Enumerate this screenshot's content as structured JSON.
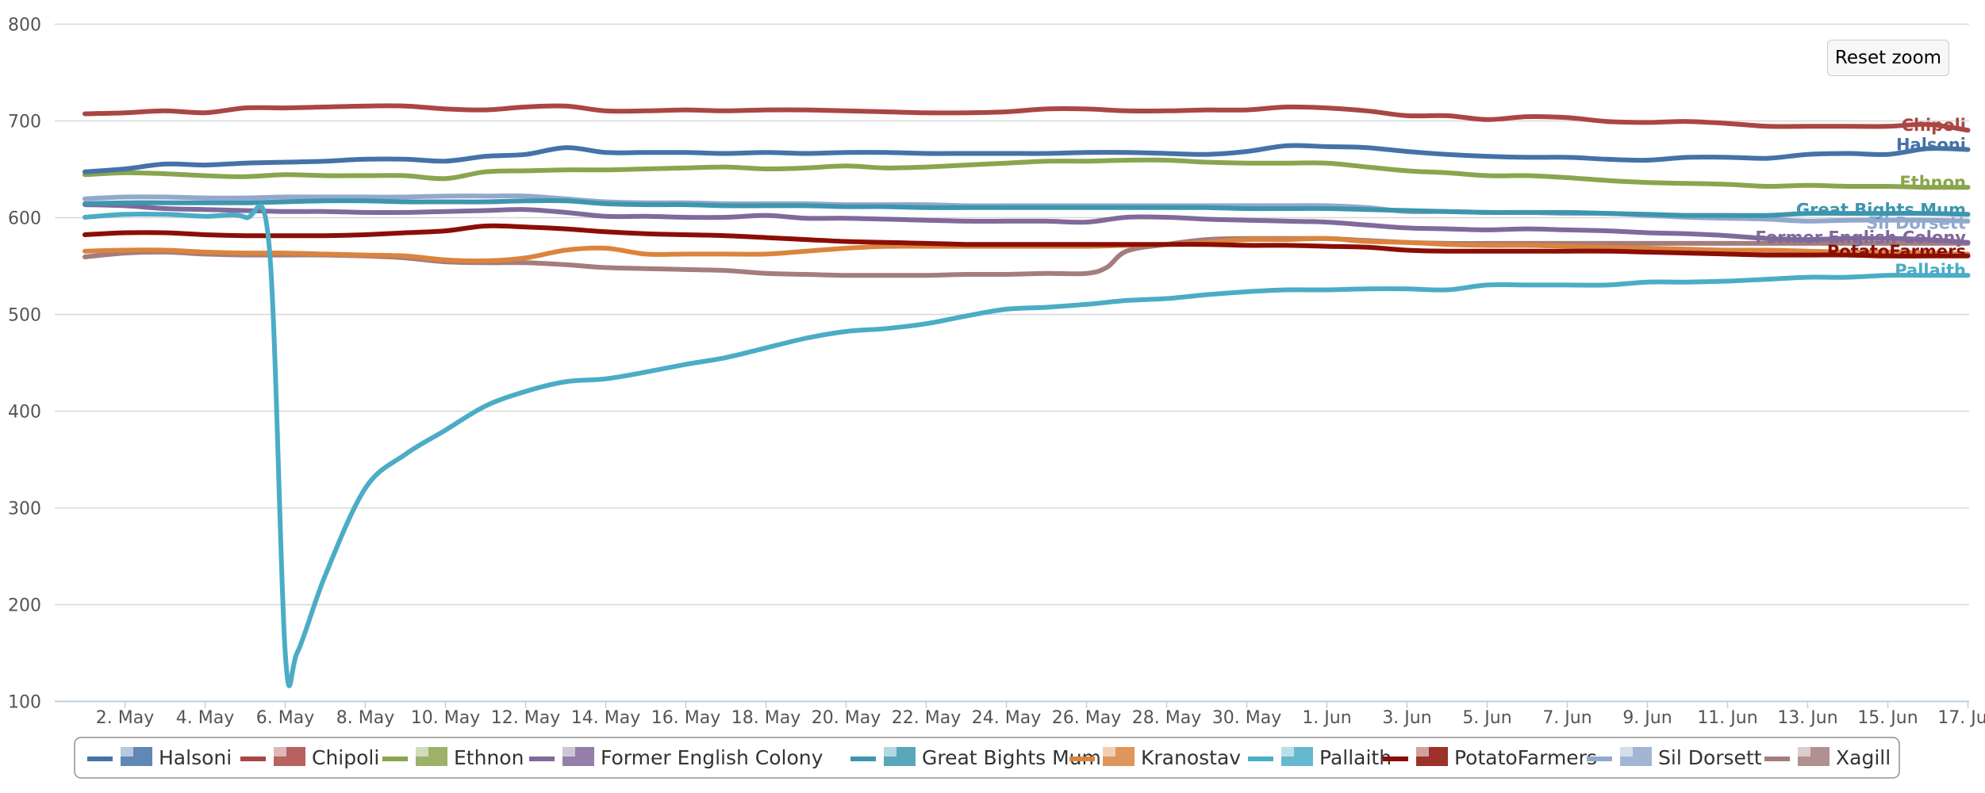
{
  "chart_data": {
    "type": "line",
    "title": "",
    "xlabel": "",
    "ylabel": "",
    "ylim": [
      100,
      800
    ],
    "y_ticks": [
      100,
      200,
      300,
      400,
      500,
      600,
      700,
      800
    ],
    "x_range_days": [
      0,
      48
    ],
    "x_ticks": [
      {
        "day": 1,
        "label": "2. May"
      },
      {
        "day": 3,
        "label": "4. May"
      },
      {
        "day": 5,
        "label": "6. May"
      },
      {
        "day": 7,
        "label": "8. May"
      },
      {
        "day": 9,
        "label": "10. May"
      },
      {
        "day": 11,
        "label": "12. May"
      },
      {
        "day": 13,
        "label": "14. May"
      },
      {
        "day": 15,
        "label": "16. May"
      },
      {
        "day": 17,
        "label": "18. May"
      },
      {
        "day": 19,
        "label": "20. May"
      },
      {
        "day": 21,
        "label": "22. May"
      },
      {
        "day": 23,
        "label": "24. May"
      },
      {
        "day": 25,
        "label": "26. May"
      },
      {
        "day": 27,
        "label": "28. May"
      },
      {
        "day": 29,
        "label": "30. May"
      },
      {
        "day": 31,
        "label": "1. Jun"
      },
      {
        "day": 33,
        "label": "3. Jun"
      },
      {
        "day": 35,
        "label": "5. Jun"
      },
      {
        "day": 37,
        "label": "7. Jun"
      },
      {
        "day": 39,
        "label": "9. Jun"
      },
      {
        "day": 41,
        "label": "11. Jun"
      },
      {
        "day": 43,
        "label": "13. Jun"
      },
      {
        "day": 45,
        "label": "15. Jun"
      },
      {
        "day": 47,
        "label": "17. Jun"
      }
    ],
    "grid": true,
    "legend_position": "bottom",
    "series": [
      {
        "name": "Halsoni",
        "color": "#4572A7",
        "icon": "flag-halsoni-icon",
        "x": [
          0,
          1,
          2,
          3,
          4,
          5,
          6,
          7,
          8,
          9,
          10,
          11,
          12,
          13,
          14,
          15,
          16,
          17,
          18,
          19,
          20,
          21,
          22,
          23,
          24,
          25,
          26,
          27,
          28,
          29,
          30,
          31,
          32,
          33,
          34,
          35,
          36,
          37,
          38,
          39,
          40,
          41,
          42,
          43,
          44,
          45,
          46,
          47
        ],
        "values": [
          647,
          650,
          655,
          654,
          656,
          657,
          658,
          660,
          660,
          658,
          663,
          665,
          672,
          667,
          667,
          667,
          666,
          667,
          666,
          667,
          667,
          666,
          666,
          666,
          666,
          667,
          667,
          666,
          665,
          668,
          674,
          673,
          672,
          668,
          665,
          663,
          662,
          662,
          660,
          659,
          662,
          662,
          661,
          665,
          666,
          665,
          671,
          670
        ]
      },
      {
        "name": "Chipoli",
        "color": "#AA4643",
        "icon": "flag-chipoli-icon",
        "x": [
          0,
          1,
          2,
          3,
          4,
          5,
          6,
          7,
          8,
          9,
          10,
          11,
          12,
          13,
          14,
          15,
          16,
          17,
          18,
          19,
          20,
          21,
          22,
          23,
          24,
          25,
          26,
          27,
          28,
          29,
          30,
          31,
          32,
          33,
          34,
          35,
          36,
          37,
          38,
          39,
          40,
          41,
          42,
          43,
          44,
          45,
          46,
          47
        ],
        "values": [
          707,
          708,
          710,
          708,
          713,
          713,
          714,
          715,
          715,
          712,
          711,
          714,
          715,
          710,
          710,
          711,
          710,
          711,
          711,
          710,
          709,
          708,
          708,
          709,
          712,
          712,
          710,
          710,
          711,
          711,
          714,
          713,
          710,
          705,
          705,
          701,
          704,
          703,
          699,
          698,
          699,
          697,
          694,
          694,
          694,
          694,
          696,
          690
        ]
      },
      {
        "name": "Ethnon",
        "color": "#89A54E",
        "icon": "flag-ethnon-icon",
        "x": [
          0,
          1,
          2,
          3,
          4,
          5,
          6,
          7,
          8,
          9,
          10,
          11,
          12,
          13,
          14,
          15,
          16,
          17,
          18,
          19,
          20,
          21,
          22,
          23,
          24,
          25,
          26,
          27,
          28,
          29,
          30,
          31,
          32,
          33,
          34,
          35,
          36,
          37,
          38,
          39,
          40,
          41,
          42,
          43,
          44,
          45,
          46,
          47
        ],
        "values": [
          644,
          646,
          645,
          643,
          642,
          644,
          643,
          643,
          643,
          640,
          647,
          648,
          649,
          649,
          650,
          651,
          652,
          650,
          651,
          653,
          651,
          652,
          654,
          656,
          658,
          658,
          659,
          659,
          657,
          656,
          656,
          656,
          652,
          648,
          646,
          643,
          643,
          641,
          638,
          636,
          635,
          634,
          632,
          633,
          632,
          632,
          631,
          631
        ]
      },
      {
        "name": "Former English Colony",
        "color": "#80699B",
        "icon": "flag-former-english-colony-icon",
        "x": [
          0,
          1,
          2,
          3,
          4,
          5,
          6,
          7,
          8,
          9,
          10,
          11,
          12,
          13,
          14,
          15,
          16,
          17,
          18,
          19,
          20,
          21,
          22,
          23,
          24,
          25,
          26,
          27,
          28,
          29,
          30,
          31,
          32,
          33,
          34,
          35,
          36,
          37,
          38,
          39,
          40,
          41,
          42,
          43,
          44,
          45,
          46,
          47
        ],
        "values": [
          613,
          612,
          609,
          608,
          607,
          606,
          606,
          605,
          605,
          606,
          607,
          608,
          605,
          601,
          601,
          600,
          600,
          602,
          599,
          599,
          598,
          597,
          596,
          596,
          596,
          595,
          600,
          600,
          598,
          597,
          596,
          595,
          592,
          589,
          588,
          587,
          588,
          587,
          586,
          584,
          583,
          581,
          578,
          577,
          578,
          578,
          577,
          574
        ]
      },
      {
        "name": "Great Bights Mum",
        "color": "#3D96AE",
        "icon": "flag-great-bights-mum-icon",
        "x": [
          0,
          1,
          2,
          3,
          4,
          5,
          6,
          7,
          8,
          9,
          10,
          11,
          12,
          13,
          14,
          15,
          16,
          17,
          18,
          19,
          20,
          21,
          22,
          23,
          24,
          25,
          26,
          27,
          28,
          29,
          30,
          31,
          32,
          33,
          34,
          35,
          36,
          37,
          38,
          39,
          40,
          41,
          42,
          43,
          44,
          45,
          46,
          47
        ],
        "values": [
          614,
          615,
          615,
          615,
          615,
          616,
          617,
          617,
          616,
          616,
          616,
          617,
          617,
          614,
          613,
          613,
          612,
          612,
          612,
          611,
          611,
          610,
          610,
          610,
          610,
          610,
          610,
          610,
          610,
          609,
          609,
          609,
          608,
          607,
          606,
          605,
          605,
          605,
          604,
          603,
          602,
          602,
          602,
          604,
          604,
          604,
          604,
          603
        ]
      },
      {
        "name": "Kranostav",
        "color": "#DB843D",
        "icon": "flag-kranostav-icon",
        "x": [
          0,
          1,
          2,
          3,
          4,
          5,
          6,
          7,
          8,
          9,
          10,
          11,
          12,
          13,
          14,
          15,
          16,
          17,
          18,
          19,
          20,
          21,
          22,
          23,
          24,
          25,
          26,
          27,
          28,
          29,
          30,
          31,
          32,
          33,
          34,
          35,
          36,
          37,
          38,
          39,
          40,
          41,
          42,
          43,
          44,
          45,
          46,
          47
        ],
        "values": [
          565,
          566,
          566,
          564,
          563,
          563,
          562,
          561,
          560,
          556,
          555,
          558,
          566,
          568,
          562,
          562,
          562,
          562,
          565,
          568,
          570,
          570,
          570,
          570,
          570,
          570,
          571,
          572,
          574,
          577,
          577,
          578,
          575,
          574,
          572,
          571,
          571,
          570,
          569,
          568,
          567,
          566,
          566,
          565,
          564,
          564,
          563,
          562
        ]
      },
      {
        "name": "Pallaith",
        "color": "#4BACC6",
        "icon": "flag-pallaith-icon",
        "x": [
          0,
          1,
          2,
          3,
          4,
          4.6,
          5,
          5.3,
          6,
          7,
          8,
          9,
          10,
          11,
          12,
          13,
          14,
          15,
          16,
          17,
          18,
          19,
          20,
          21,
          22,
          23,
          24,
          25,
          26,
          27,
          28,
          29,
          30,
          31,
          32,
          33,
          34,
          35,
          36,
          37,
          38,
          39,
          40,
          41,
          42,
          43,
          44,
          45,
          46,
          47
        ],
        "values": [
          600,
          603,
          603,
          601,
          600,
          570,
          150,
          150,
          230,
          320,
          355,
          380,
          405,
          420,
          430,
          433,
          440,
          448,
          455,
          465,
          475,
          482,
          485,
          490,
          498,
          505,
          507,
          510,
          514,
          516,
          520,
          523,
          525,
          525,
          526,
          526,
          525,
          530,
          530,
          530,
          530,
          533,
          533,
          534,
          536,
          538,
          538,
          540,
          540,
          540
        ]
      },
      {
        "name": "PotatoFarmers",
        "color": "#8B0E04",
        "icon": "flag-potatofarmers-icon",
        "x": [
          0,
          1,
          2,
          3,
          4,
          5,
          6,
          7,
          8,
          9,
          10,
          11,
          12,
          13,
          14,
          15,
          16,
          17,
          18,
          19,
          20,
          21,
          22,
          23,
          24,
          25,
          26,
          27,
          28,
          29,
          30,
          31,
          32,
          33,
          34,
          35,
          36,
          37,
          38,
          39,
          40,
          41,
          42,
          43,
          44,
          45,
          46,
          47
        ],
        "values": [
          582,
          584,
          584,
          582,
          581,
          581,
          581,
          582,
          584,
          586,
          591,
          590,
          588,
          585,
          583,
          582,
          581,
          579,
          577,
          575,
          574,
          573,
          572,
          572,
          572,
          572,
          572,
          572,
          572,
          571,
          571,
          570,
          569,
          566,
          565,
          565,
          565,
          565,
          565,
          564,
          563,
          562,
          561,
          561,
          561,
          560,
          560,
          560
        ]
      },
      {
        "name": "Sil Dorsett",
        "color": "#92A8CD",
        "icon": "flag-sil-dorsett-icon",
        "x": [
          0,
          1,
          2,
          3,
          4,
          5,
          6,
          7,
          8,
          9,
          10,
          11,
          12,
          13,
          14,
          15,
          16,
          17,
          18,
          19,
          20,
          21,
          22,
          23,
          24,
          25,
          26,
          27,
          28,
          29,
          30,
          31,
          32,
          33,
          34,
          35,
          36,
          37,
          38,
          39,
          40,
          41,
          42,
          43,
          44,
          45,
          46,
          47
        ],
        "values": [
          619,
          621,
          621,
          620,
          620,
          621,
          621,
          621,
          621,
          622,
          622,
          622,
          619,
          616,
          615,
          615,
          614,
          614,
          614,
          613,
          613,
          613,
          612,
          612,
          612,
          612,
          612,
          612,
          612,
          612,
          612,
          612,
          610,
          606,
          606,
          605,
          605,
          604,
          604,
          602,
          600,
          599,
          598,
          596,
          597,
          597,
          597,
          596
        ]
      },
      {
        "name": "Xagill",
        "color": "#A47D7C",
        "icon": "flag-xagill-icon",
        "x": [
          0,
          1,
          2,
          3,
          4,
          5,
          6,
          7,
          8,
          9,
          10,
          11,
          12,
          13,
          14,
          15,
          16,
          17,
          18,
          19,
          20,
          21,
          22,
          23,
          24,
          25,
          25.5,
          26,
          27,
          28,
          29,
          30,
          31,
          32,
          33,
          34,
          35,
          36,
          37,
          38,
          39,
          40,
          41,
          42,
          43,
          44,
          45,
          46,
          47
        ],
        "values": [
          559,
          563,
          564,
          562,
          561,
          561,
          561,
          560,
          558,
          554,
          553,
          553,
          551,
          548,
          547,
          546,
          545,
          542,
          541,
          540,
          540,
          540,
          541,
          541,
          542,
          542,
          548,
          565,
          572,
          577,
          578,
          578,
          578,
          576,
          574,
          573,
          573,
          573,
          573,
          573,
          573,
          573,
          573,
          573,
          573,
          573,
          573,
          573,
          573
        ]
      }
    ],
    "end_labels": [
      {
        "series": "Chipoli",
        "text": "Chipoli"
      },
      {
        "series": "Halsoni",
        "text": "Halsoni"
      },
      {
        "series": "Ethnon",
        "text": "Ethnon"
      },
      {
        "series": "Great Bights Mum",
        "text": "Great Bights Mum"
      },
      {
        "series": "Sil Dorsett",
        "text": "Sil Dorsett"
      },
      {
        "series": "Former English Colony",
        "text": "Former English Colony"
      },
      {
        "series": "PotatoFarmers",
        "text": "PotatoFarmers"
      },
      {
        "series": "Pallaith",
        "text": "Pallaith"
      }
    ]
  },
  "controls": {
    "reset_zoom_label": "Reset zoom"
  }
}
